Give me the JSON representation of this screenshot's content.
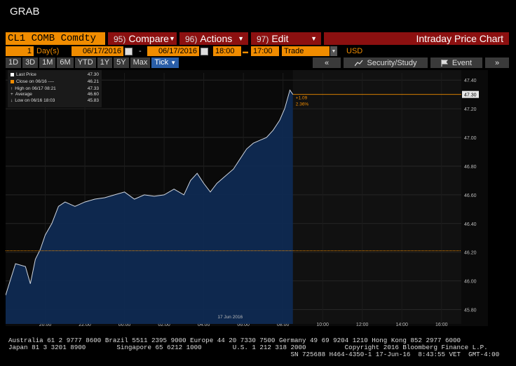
{
  "window": {
    "title": "GRAB"
  },
  "toolbar": {
    "ticker": "CL1 COMB Comdty",
    "compare": {
      "num": "95)",
      "label": "Compare"
    },
    "actions": {
      "num": "96)",
      "label": "Actions"
    },
    "edit": {
      "num": "97)",
      "label": "Edit"
    },
    "chart_title": "Intraday Price Chart"
  },
  "range": {
    "days_value": "1",
    "days_label": "Day(s)",
    "start_date": "06/17/2016",
    "dash": "-",
    "end_date": "06/17/2016",
    "start_time": "18:00",
    "end_time": "17:00",
    "event_type": "Trade",
    "currency": "USD"
  },
  "periods": [
    "1D",
    "3D",
    "1M",
    "6M",
    "YTD",
    "1Y",
    "5Y",
    "Max"
  ],
  "tick_label": "Tick",
  "right_buttons": {
    "back": "«",
    "security": "Security/Study",
    "event": "Event",
    "more": "»"
  },
  "legend": {
    "last_price": {
      "label": "Last Price",
      "value": "47.30"
    },
    "close": {
      "label": "Close on 06/16 ----",
      "value": "46.21"
    },
    "high": {
      "label": "High on 06/17 08:21",
      "value": "47.33"
    },
    "average": {
      "label": "Average",
      "value": "46.60"
    },
    "low": {
      "label": "Low on 06/16 18:03",
      "value": "45.83"
    }
  },
  "annotation": {
    "change": "+1.09",
    "pct": "2.36%"
  },
  "colors": {
    "price_fill": "#0f2a52",
    "price_line": "#cfd6e0",
    "ref_line": "#f08c00",
    "accent": "#f08c00",
    "menu": "#8c1010"
  },
  "chart_data": {
    "type": "area",
    "title": "",
    "xlabel": "",
    "ylabel": "",
    "date_label": "17 Jun 2016",
    "x_ticks": [
      "20:00",
      "22:00",
      "00:00",
      "02:00",
      "04:00",
      "06:00",
      "08:00",
      "10:00",
      "12:00",
      "14:00",
      "16:00"
    ],
    "y_ticks": [
      "45.80",
      "46.00",
      "46.20",
      "46.40",
      "46.60",
      "46.80",
      "47.00",
      "47.20",
      "47.40"
    ],
    "ylim": [
      45.7,
      47.45
    ],
    "x_hours_span": [
      "18:00",
      "17:00"
    ],
    "last_price_label": "47.30",
    "close_reference": 46.21,
    "last_price": 47.3,
    "series": [
      {
        "x": [
          "18:00",
          "18:30",
          "19:00",
          "19:15",
          "19:30",
          "19:45",
          "20:00",
          "20:20",
          "20:40",
          "21:00",
          "21:30",
          "22:00",
          "22:30",
          "23:00",
          "23:30",
          "00:00",
          "00:30",
          "01:00",
          "01:30",
          "02:00",
          "02:30",
          "03:00",
          "03:20",
          "03:40",
          "04:00",
          "04:20",
          "04:40",
          "05:00",
          "05:30",
          "05:50",
          "06:10",
          "06:30",
          "06:50",
          "07:10",
          "07:30",
          "07:50",
          "08:05",
          "08:21",
          "08:30"
        ],
        "values": [
          45.9,
          46.12,
          46.1,
          45.98,
          46.15,
          46.22,
          46.32,
          46.4,
          46.52,
          46.55,
          46.52,
          46.55,
          46.57,
          46.58,
          46.6,
          46.62,
          46.57,
          46.6,
          46.59,
          46.6,
          46.64,
          46.6,
          46.7,
          46.75,
          46.68,
          46.62,
          46.68,
          46.72,
          46.78,
          46.85,
          46.92,
          46.96,
          46.98,
          47.0,
          47.05,
          47.12,
          47.2,
          47.33,
          47.3
        ]
      }
    ]
  },
  "footer": {
    "line1": "Australia 61 2 9777 8600 Brazil 5511 2395 9000 Europe 44 20 7330 7500 Germany 49 69 9204 1210 Hong Kong 852 2977 6000",
    "line2": "Japan 81 3 3201 8900        Singapore 65 6212 1000        U.S. 1 212 318 2000          Copyright 2016 Bloomberg Finance L.P.",
    "line3": "                                                                         SN 725688 H464-4350-1 17-Jun-16  8:43:55 VET  GMT-4:00"
  }
}
